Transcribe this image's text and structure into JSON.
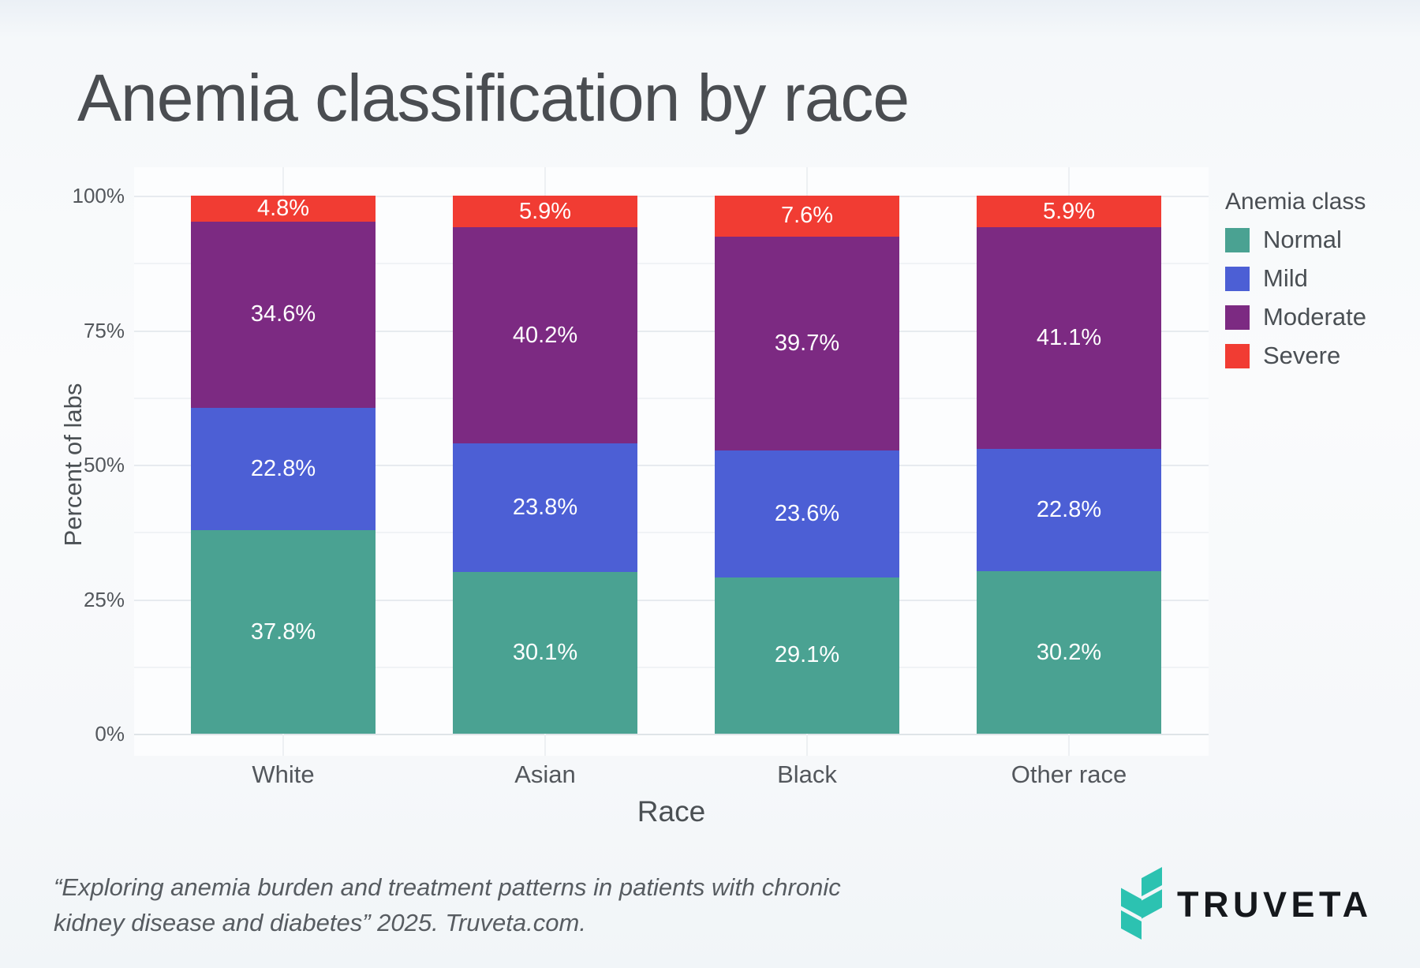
{
  "page": {
    "title": "Anemia classification by race",
    "footer": {
      "citation_line1": "“Exploring anemia burden and treatment patterns in patients with chronic",
      "citation_line2": "kidney disease and diabetes” 2025. Truveta.com."
    },
    "brand": {
      "wordmark": "TRUVETA",
      "icon": "truveta-chevron-leaf-icon",
      "icon_color": "#2CC2B1",
      "wordmark_color": "#15181C"
    }
  },
  "chart_data": {
    "type": "bar",
    "stacked": true,
    "orientation": "vertical",
    "title": "Anemia classification by race",
    "xlabel": "Race",
    "ylabel": "Percent of labs",
    "categories": [
      "White",
      "Asian",
      "Black",
      "Other race"
    ],
    "series": [
      {
        "name": "Normal",
        "color": "#4AA292",
        "values": [
          37.8,
          30.1,
          29.1,
          30.2
        ]
      },
      {
        "name": "Mild",
        "color": "#4C5FD5",
        "values": [
          22.8,
          23.8,
          23.6,
          22.8
        ]
      },
      {
        "name": "Moderate",
        "color": "#7C2A82",
        "values": [
          34.6,
          40.2,
          39.7,
          41.1
        ]
      },
      {
        "name": "Severe",
        "color": "#F13C33",
        "values": [
          4.8,
          5.9,
          7.6,
          5.9
        ]
      }
    ],
    "value_label_format": "{value}%",
    "ylim": [
      0,
      100
    ],
    "ytick_values": [
      0,
      25,
      50,
      75,
      100
    ],
    "ytick_labels": [
      "0%",
      "25%",
      "50%",
      "75%",
      "100%"
    ],
    "minor_gridlines": [
      12.5,
      37.5,
      62.5,
      87.5
    ],
    "grid": true,
    "legend": {
      "title": "Anemia class",
      "position": "right"
    }
  }
}
